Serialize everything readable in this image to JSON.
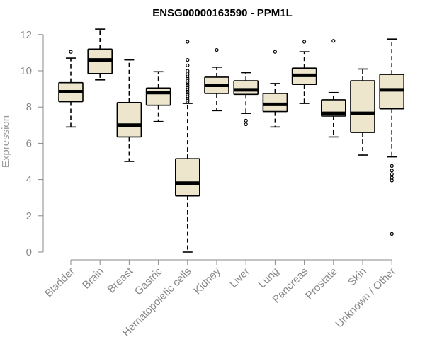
{
  "chart_data": {
    "type": "box",
    "title": "ENSG00000163590 - PPM1L",
    "ylabel": "Expression",
    "xlabel": "",
    "ylim": [
      0,
      12.5
    ],
    "yticks": [
      0,
      2,
      4,
      6,
      8,
      10,
      12
    ],
    "grid": false,
    "legend": "none",
    "colors": {
      "box_fill": "#ede5cc",
      "box_stroke": "#000000",
      "median": "#000000",
      "axis": "#888888"
    },
    "categories": [
      "Bladder",
      "Brain",
      "Breast",
      "Gastric",
      "Hematopoietic cells",
      "Kidney",
      "Liver",
      "Lung",
      "Pancreas",
      "Prostate",
      "Skin",
      "Unknown / Other"
    ],
    "boxes": [
      {
        "category": "Bladder",
        "whisker_low": 6.9,
        "q1": 8.3,
        "median": 8.85,
        "q3": 9.35,
        "whisker_high": 10.7,
        "outliers": [
          11.05
        ]
      },
      {
        "category": "Brain",
        "whisker_low": 9.5,
        "q1": 9.85,
        "median": 10.6,
        "q3": 11.2,
        "whisker_high": 12.3,
        "outliers": []
      },
      {
        "category": "Breast",
        "whisker_low": 5.0,
        "q1": 6.35,
        "median": 7.0,
        "q3": 8.25,
        "whisker_high": 10.6,
        "outliers": []
      },
      {
        "category": "Gastric",
        "whisker_low": 7.2,
        "q1": 8.1,
        "median": 8.8,
        "q3": 9.05,
        "whisker_high": 9.95,
        "outliers": []
      },
      {
        "category": "Hematopoietic cells",
        "whisker_low": 0.0,
        "q1": 3.1,
        "median": 3.8,
        "q3": 5.15,
        "whisker_high": 8.2,
        "outliers": [
          8.3,
          8.4,
          8.5,
          8.6,
          8.7,
          8.8,
          8.9,
          9.0,
          9.1,
          9.2,
          9.3,
          9.4,
          9.5,
          9.6,
          9.7,
          9.8,
          9.9,
          10.0,
          10.3,
          10.6,
          11.6
        ]
      },
      {
        "category": "Kidney",
        "whisker_low": 7.8,
        "q1": 8.75,
        "median": 9.2,
        "q3": 9.65,
        "whisker_high": 10.2,
        "outliers": [
          11.15
        ]
      },
      {
        "category": "Liver",
        "whisker_low": 7.65,
        "q1": 8.7,
        "median": 8.95,
        "q3": 9.45,
        "whisker_high": 9.9,
        "outliers": [
          7.05,
          7.25
        ]
      },
      {
        "category": "Lung",
        "whisker_low": 6.9,
        "q1": 7.75,
        "median": 8.15,
        "q3": 8.75,
        "whisker_high": 9.3,
        "outliers": [
          11.05
        ]
      },
      {
        "category": "Pancreas",
        "whisker_low": 8.2,
        "q1": 9.25,
        "median": 9.75,
        "q3": 10.15,
        "whisker_high": 11.05,
        "outliers": [
          11.6
        ]
      },
      {
        "category": "Prostate",
        "whisker_low": 6.35,
        "q1": 7.5,
        "median": 7.65,
        "q3": 8.4,
        "whisker_high": 8.8,
        "outliers": [
          11.65
        ]
      },
      {
        "category": "Skin",
        "whisker_low": 5.35,
        "q1": 6.6,
        "median": 7.65,
        "q3": 9.45,
        "whisker_high": 10.1,
        "outliers": []
      },
      {
        "category": "Unknown / Other",
        "whisker_low": 5.25,
        "q1": 7.9,
        "median": 8.95,
        "q3": 9.8,
        "whisker_high": 11.75,
        "outliers": [
          1.0,
          3.95,
          4.1,
          4.3,
          4.5,
          4.75
        ]
      }
    ]
  }
}
